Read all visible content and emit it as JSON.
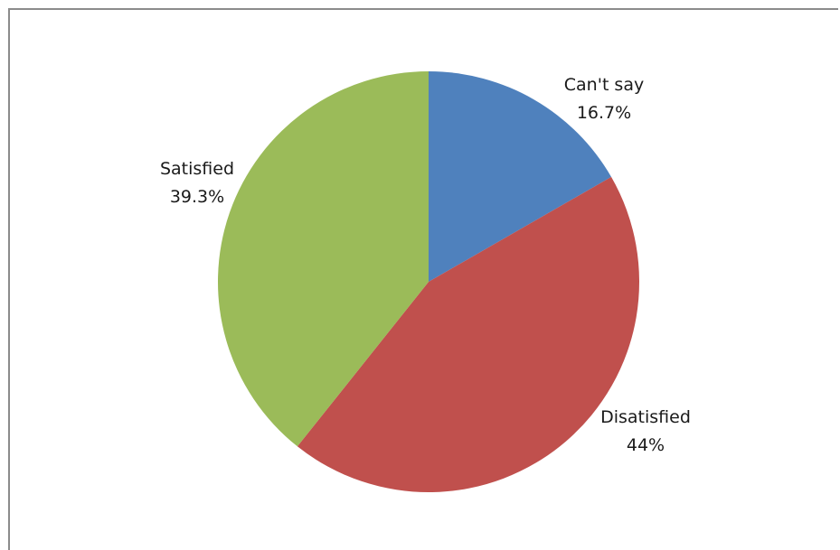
{
  "chart_data": {
    "type": "pie",
    "title": "",
    "start_angle_deg": 0,
    "direction": "clockwise",
    "legend": "none",
    "slices": [
      {
        "label": "Can't say",
        "value": 16.7,
        "display": "16.7%",
        "color": "#4f81bd"
      },
      {
        "label": "Disatisfied",
        "value": 44,
        "display": "44%",
        "color": "#c0504d"
      },
      {
        "label": "Satisfied",
        "value": 39.3,
        "display": "39.3%",
        "color": "#9bbb59"
      }
    ]
  }
}
